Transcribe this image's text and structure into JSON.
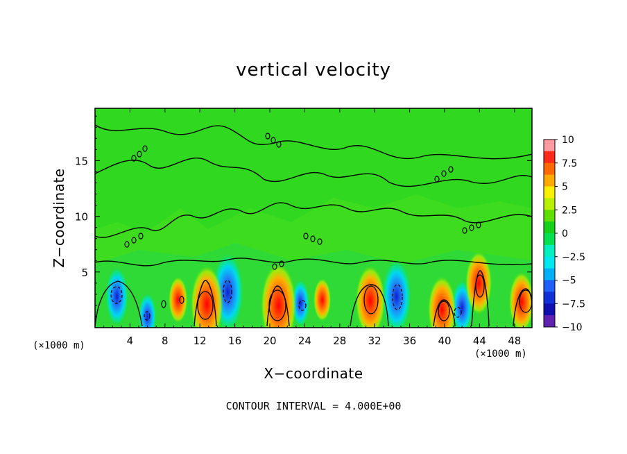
{
  "chart_data": {
    "type": "heatmap",
    "title": "vertical velocity",
    "xlabel": "X−coordinate",
    "ylabel": "Z−coordinate",
    "x_unit": "(×1000 m)",
    "x_ticks": [
      4,
      8,
      12,
      16,
      20,
      24,
      28,
      32,
      36,
      40,
      44,
      48
    ],
    "y_ticks": [
      5,
      10,
      15
    ],
    "xlim": [
      0,
      50
    ],
    "ylim": [
      0,
      19.7
    ],
    "colorbar": {
      "ticks": [
        "10",
        "7.5",
        "5",
        "2.5",
        "0",
        "−2.5",
        "−5",
        "−7.5",
        "−10"
      ],
      "range": [
        -10,
        10
      ],
      "colors": [
        "#ff9aa0",
        "#ff2a1a",
        "#ff6a00",
        "#ffaa00",
        "#f8f000",
        "#b8f000",
        "#60e000",
        "#18d018",
        "#00e050",
        "#00f0c0",
        "#00e8f0",
        "#00b0f8",
        "#2060f8",
        "#1030d8",
        "#1010b0",
        "#6020b0"
      ]
    },
    "footer": "CONTOUR INTERVAL = 4.000E+00",
    "updrafts": [
      {
        "x": 12.8,
        "z": 2.1,
        "w": 8.0
      },
      {
        "x": 21.0,
        "z": 2.0,
        "w": 9.0
      },
      {
        "x": 31.5,
        "z": 2.4,
        "w": 7.0
      },
      {
        "x": 39.7,
        "z": 1.6,
        "w": 6.5
      },
      {
        "x": 43.9,
        "z": 4.0,
        "w": 6.0
      },
      {
        "x": 48.8,
        "z": 2.3,
        "w": 5.5
      },
      {
        "x": 9.5,
        "z": 2.5,
        "w": 3.5
      },
      {
        "x": 26.0,
        "z": 2.5,
        "w": 3.0
      }
    ],
    "downdrafts": [
      {
        "x": 2.5,
        "z": 2.8,
        "w": -4.5
      },
      {
        "x": 15.2,
        "z": 3.2,
        "w": -7.0
      },
      {
        "x": 34.5,
        "z": 2.8,
        "w": -6.5
      },
      {
        "x": 42.0,
        "z": 1.8,
        "w": -4.0
      },
      {
        "x": 23.5,
        "z": 2.2,
        "w": -3.0
      },
      {
        "x": 6.0,
        "z": 1.0,
        "w": -3.0
      }
    ]
  }
}
